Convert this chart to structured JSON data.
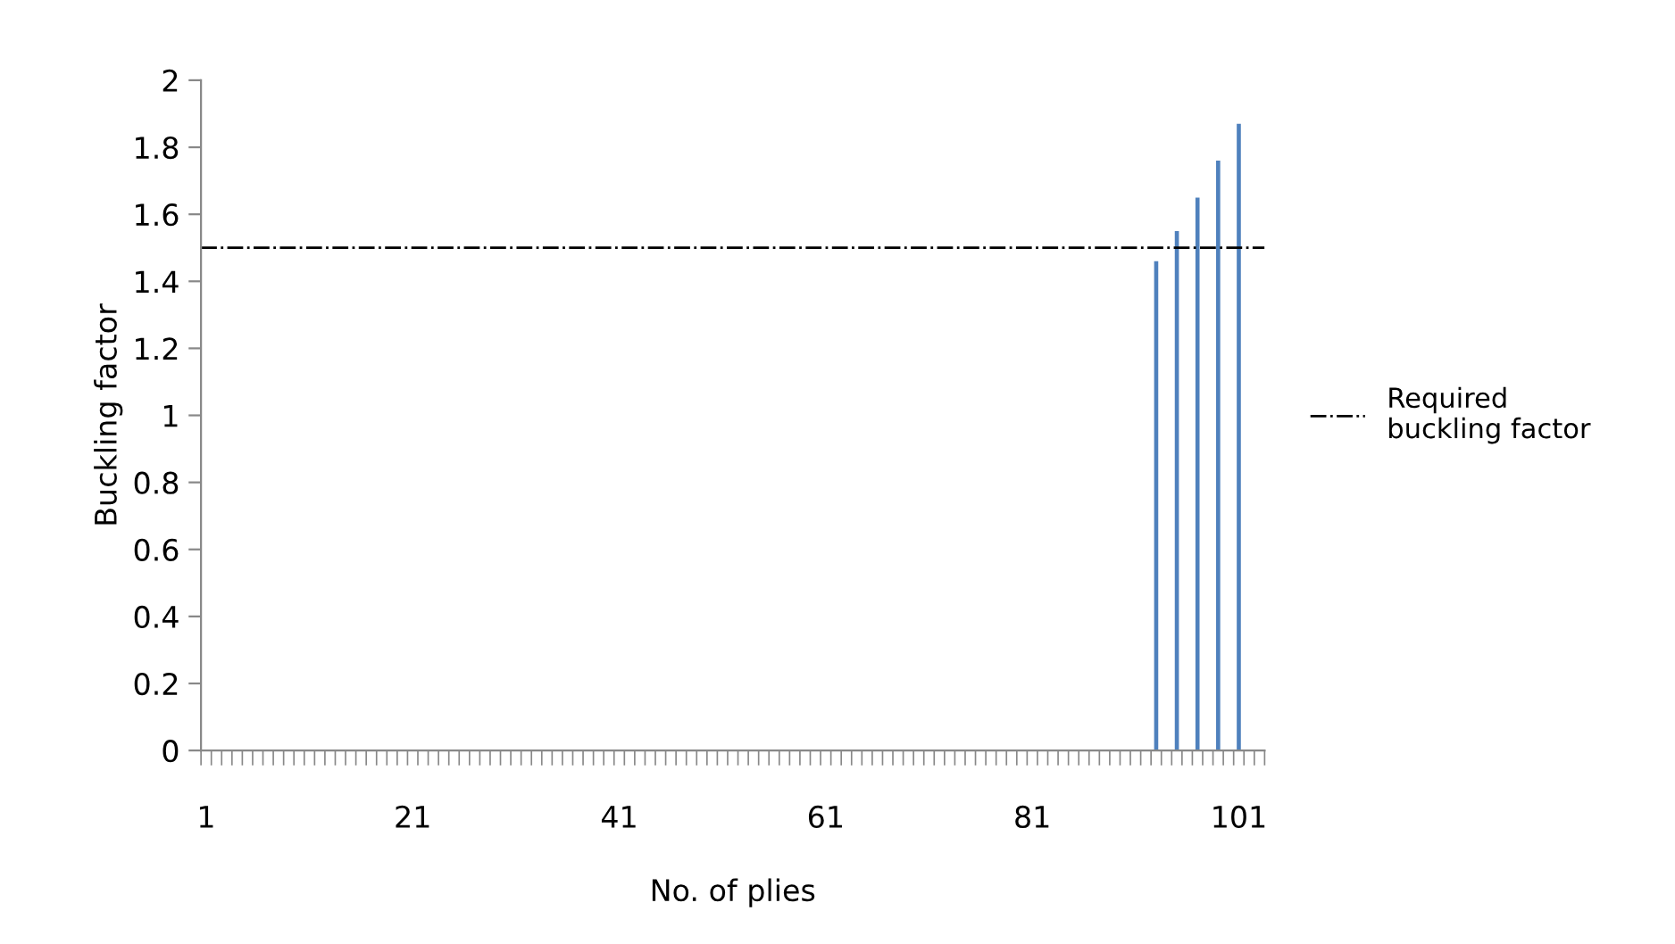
{
  "chart_data": {
    "type": "bar",
    "xlabel": "No. of plies",
    "ylabel": "Buckling factor",
    "categories": [
      "1",
      null,
      null,
      null,
      null,
      null,
      null,
      null,
      null,
      null,
      null,
      null,
      null,
      null,
      null,
      null,
      null,
      null,
      null,
      null,
      "21",
      null,
      null,
      null,
      null,
      null,
      null,
      null,
      null,
      null,
      null,
      null,
      null,
      null,
      null,
      null,
      null,
      null,
      null,
      null,
      "41",
      null,
      null,
      null,
      null,
      null,
      null,
      null,
      null,
      null,
      null,
      null,
      null,
      null,
      null,
      null,
      null,
      null,
      null,
      null,
      "61",
      null,
      null,
      null,
      null,
      null,
      null,
      null,
      null,
      null,
      null,
      null,
      null,
      null,
      null,
      null,
      null,
      null,
      null,
      null,
      "81",
      null,
      null,
      null,
      null,
      null,
      null,
      null,
      null,
      null,
      null,
      null,
      null,
      null,
      null,
      null,
      null,
      null,
      null,
      null,
      "101",
      null,
      null
    ],
    "series": [
      {
        "color": "#4f81bd",
        "values": [
          null,
          null,
          null,
          null,
          null,
          null,
          null,
          null,
          null,
          null,
          null,
          null,
          null,
          null,
          null,
          null,
          null,
          null,
          null,
          null,
          null,
          null,
          null,
          null,
          null,
          null,
          null,
          null,
          null,
          null,
          null,
          null,
          null,
          null,
          null,
          null,
          null,
          null,
          null,
          null,
          null,
          null,
          null,
          null,
          null,
          null,
          null,
          null,
          null,
          null,
          null,
          null,
          null,
          null,
          null,
          null,
          null,
          null,
          null,
          null,
          null,
          null,
          null,
          null,
          null,
          null,
          null,
          null,
          null,
          null,
          null,
          null,
          null,
          null,
          null,
          null,
          null,
          null,
          null,
          null,
          null,
          null,
          null,
          null,
          null,
          null,
          null,
          null,
          null,
          null,
          null,
          null,
          1.46,
          null,
          1.55,
          null,
          1.65,
          null,
          1.76,
          null,
          1.87,
          null,
          null
        ]
      }
    ],
    "ylim": [
      0,
      2
    ],
    "yticks": [
      0,
      0.2,
      0.4,
      0.6,
      0.8,
      1,
      1.2,
      1.4,
      1.6,
      1.8,
      2
    ],
    "ref_lines": [
      {
        "axis": "y",
        "value": 1.5,
        "label": "Required\nbuckling factor",
        "color": "#000000",
        "line_style": "dashdot"
      }
    ],
    "legend": "right",
    "grid": false
  }
}
